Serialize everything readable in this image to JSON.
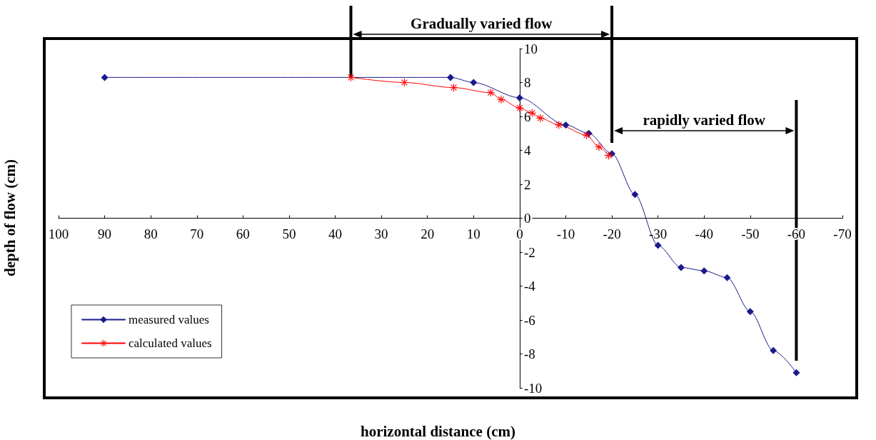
{
  "chart_data": {
    "type": "line",
    "xlabel": "horizontal distance (cm)",
    "ylabel": "depth of flow (cm)",
    "xlim": [
      100,
      -70
    ],
    "xticks": [
      100,
      90,
      80,
      70,
      60,
      50,
      40,
      30,
      20,
      10,
      0,
      -10,
      -20,
      -30,
      -40,
      -50,
      -60,
      -70
    ],
    "ylim": [
      -10,
      10
    ],
    "yticks": [
      -10,
      -8,
      -6,
      -4,
      -2,
      0,
      2,
      4,
      6,
      8,
      10
    ],
    "grid": false,
    "legend": "bottom left",
    "line_style": "solid",
    "series": [
      {
        "name": "measured values",
        "color": "#1a1a8c",
        "marker": "diamond",
        "x": [
          90,
          15,
          10,
          0,
          -10,
          -15,
          -20,
          -25,
          -30,
          -35,
          -40,
          -45,
          -50,
          -55,
          -60
        ],
        "values": [
          8.3,
          8.3,
          8.0,
          7.1,
          5.5,
          5.0,
          3.8,
          1.4,
          -1.6,
          -2.9,
          -3.1,
          -3.5,
          -5.5,
          -7.8,
          -9.1
        ]
      },
      {
        "name": "calculated values",
        "color": "#ff0000",
        "marker": "star",
        "x": [
          36.6,
          25,
          14.3,
          6.3,
          4,
          0,
          -2.7,
          -4.5,
          -8.5,
          -14.5,
          -17.2,
          -19.3
        ],
        "values": [
          8.3,
          8.0,
          7.7,
          7.4,
          7.0,
          6.5,
          6.2,
          5.9,
          5.5,
          4.9,
          4.2,
          3.7
        ]
      }
    ],
    "ref_lines": [
      {
        "axis": "x",
        "value": 36.6
      },
      {
        "axis": "x",
        "value": -20
      },
      {
        "axis": "x",
        "value": -60
      }
    ],
    "annotations": [
      "Gradually varied flow",
      "rapidly varied flow"
    ]
  }
}
